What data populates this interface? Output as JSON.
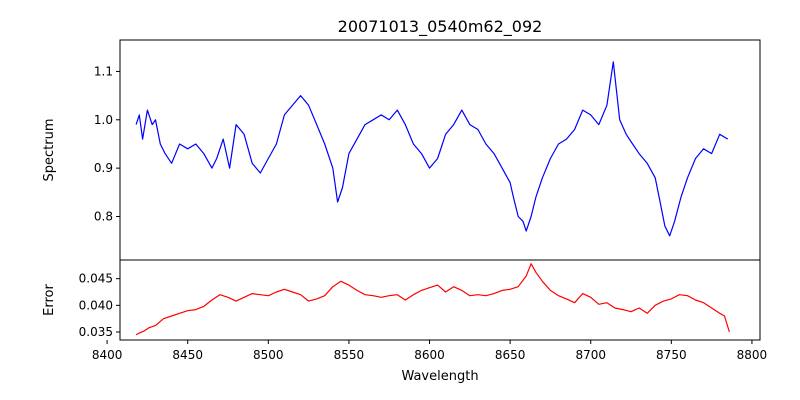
{
  "title": "20071013_0540m62_092",
  "chart_data": [
    {
      "type": "line",
      "title": "20071013_0540m62_092",
      "ylabel": "Spectrum",
      "xlabel": "",
      "xlim": [
        8408,
        8805
      ],
      "ylim": [
        0.71,
        1.165
      ],
      "yticks": [
        0.8,
        0.9,
        1.0,
        1.1
      ],
      "yticklabels": [
        "0.8",
        "0.9",
        "1.0",
        "1.1"
      ],
      "grid": false,
      "series": [
        {
          "color": "#0000ff",
          "x": [
            8418,
            8420,
            8422,
            8425,
            8428,
            8430,
            8433,
            8436,
            8440,
            8445,
            8450,
            8455,
            8460,
            8465,
            8468,
            8472,
            8476,
            8480,
            8485,
            8490,
            8495,
            8500,
            8505,
            8510,
            8515,
            8520,
            8525,
            8530,
            8535,
            8540,
            8543,
            8546,
            8550,
            8555,
            8560,
            8565,
            8570,
            8575,
            8580,
            8585,
            8590,
            8595,
            8600,
            8605,
            8610,
            8615,
            8620,
            8625,
            8630,
            8635,
            8640,
            8645,
            8650,
            8652,
            8655,
            8658,
            8660,
            8663,
            8666,
            8670,
            8675,
            8680,
            8685,
            8690,
            8695,
            8700,
            8705,
            8710,
            8714,
            8718,
            8722,
            8726,
            8730,
            8735,
            8740,
            8743,
            8746,
            8749,
            8752,
            8756,
            8760,
            8765,
            8770,
            8775,
            8780,
            8785
          ],
          "y": [
            0.99,
            1.01,
            0.96,
            1.02,
            0.99,
            1.0,
            0.95,
            0.93,
            0.91,
            0.95,
            0.94,
            0.95,
            0.93,
            0.9,
            0.92,
            0.96,
            0.9,
            0.99,
            0.97,
            0.91,
            0.89,
            0.92,
            0.95,
            1.01,
            1.03,
            1.05,
            1.03,
            0.99,
            0.95,
            0.9,
            0.83,
            0.86,
            0.93,
            0.96,
            0.99,
            1.0,
            1.01,
            1.0,
            1.02,
            0.99,
            0.95,
            0.93,
            0.9,
            0.92,
            0.97,
            0.99,
            1.02,
            0.99,
            0.98,
            0.95,
            0.93,
            0.9,
            0.87,
            0.84,
            0.8,
            0.79,
            0.77,
            0.8,
            0.84,
            0.88,
            0.92,
            0.95,
            0.96,
            0.98,
            1.02,
            1.01,
            0.99,
            1.03,
            1.12,
            1.0,
            0.97,
            0.95,
            0.93,
            0.91,
            0.88,
            0.83,
            0.78,
            0.76,
            0.79,
            0.84,
            0.88,
            0.92,
            0.94,
            0.93,
            0.97,
            0.96
          ]
        }
      ]
    },
    {
      "type": "line",
      "title": "",
      "ylabel": "Error",
      "xlabel": "Wavelength",
      "xlim": [
        8408,
        8805
      ],
      "ylim": [
        0.0335,
        0.0485
      ],
      "xticks": [
        8400,
        8450,
        8500,
        8550,
        8600,
        8650,
        8700,
        8750,
        8800
      ],
      "xticklabels": [
        "8400",
        "8450",
        "8500",
        "8550",
        "8600",
        "8650",
        "8700",
        "8750",
        "8800"
      ],
      "yticks": [
        0.035,
        0.04,
        0.045
      ],
      "yticklabels": [
        "0.035",
        "0.040",
        "0.045"
      ],
      "grid": false,
      "series": [
        {
          "color": "#ff0000",
          "x": [
            8418,
            8420,
            8423,
            8426,
            8430,
            8435,
            8440,
            8445,
            8450,
            8455,
            8460,
            8465,
            8470,
            8475,
            8480,
            8485,
            8490,
            8495,
            8500,
            8505,
            8510,
            8515,
            8520,
            8525,
            8530,
            8535,
            8540,
            8545,
            8550,
            8555,
            8560,
            8565,
            8570,
            8575,
            8580,
            8585,
            8590,
            8595,
            8600,
            8605,
            8610,
            8615,
            8620,
            8625,
            8630,
            8635,
            8640,
            8645,
            8650,
            8655,
            8660,
            8663,
            8666,
            8670,
            8675,
            8680,
            8685,
            8690,
            8695,
            8700,
            8705,
            8710,
            8715,
            8720,
            8725,
            8730,
            8735,
            8740,
            8745,
            8750,
            8755,
            8760,
            8765,
            8770,
            8775,
            8780,
            8783,
            8786
          ],
          "y": [
            0.0345,
            0.0348,
            0.0352,
            0.0358,
            0.0362,
            0.0375,
            0.038,
            0.0385,
            0.039,
            0.0392,
            0.0398,
            0.041,
            0.042,
            0.0415,
            0.0408,
            0.0415,
            0.0422,
            0.042,
            0.0418,
            0.0425,
            0.043,
            0.0425,
            0.042,
            0.0408,
            0.0412,
            0.0418,
            0.0435,
            0.0445,
            0.0438,
            0.0428,
            0.042,
            0.0418,
            0.0415,
            0.0418,
            0.042,
            0.041,
            0.042,
            0.0428,
            0.0433,
            0.0438,
            0.0425,
            0.0435,
            0.0428,
            0.0418,
            0.042,
            0.0418,
            0.0422,
            0.0428,
            0.043,
            0.0435,
            0.0455,
            0.0478,
            0.0462,
            0.0445,
            0.0428,
            0.0418,
            0.0412,
            0.0405,
            0.0422,
            0.0415,
            0.0402,
            0.0405,
            0.0395,
            0.0392,
            0.0388,
            0.0395,
            0.0385,
            0.04,
            0.0408,
            0.0412,
            0.042,
            0.0418,
            0.041,
            0.0405,
            0.0395,
            0.0385,
            0.038,
            0.035
          ]
        }
      ]
    }
  ]
}
